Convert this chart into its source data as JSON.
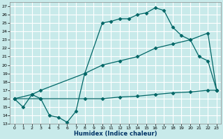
{
  "title": "",
  "xlabel": "Humidex (Indice chaleur)",
  "background_color": "#c8eaea",
  "grid_color": "#ffffff",
  "line_color": "#006666",
  "xlim": [
    -0.5,
    23.5
  ],
  "ylim": [
    13,
    27.5
  ],
  "xticks": [
    0,
    1,
    2,
    3,
    4,
    5,
    6,
    7,
    8,
    9,
    10,
    11,
    12,
    13,
    14,
    15,
    16,
    17,
    18,
    19,
    20,
    21,
    22,
    23
  ],
  "yticks": [
    13,
    14,
    15,
    16,
    17,
    18,
    19,
    20,
    21,
    22,
    23,
    24,
    25,
    26,
    27
  ],
  "line1_x": [
    0,
    1,
    2,
    3,
    4,
    5,
    6,
    7,
    8,
    10,
    11,
    12,
    13,
    14,
    15,
    16,
    17,
    18,
    19,
    20,
    21,
    22,
    23
  ],
  "line1_y": [
    16.0,
    15.0,
    16.5,
    16.0,
    14.0,
    13.8,
    13.2,
    14.5,
    19.0,
    25.0,
    25.2,
    25.5,
    25.5,
    26.0,
    26.2,
    26.8,
    26.5,
    24.5,
    23.5,
    23.0,
    21.0,
    20.5,
    17.0
  ],
  "line2_x": [
    0,
    2,
    3,
    8,
    10,
    12,
    14,
    16,
    18,
    20,
    22,
    23
  ],
  "line2_y": [
    16.0,
    16.5,
    17.0,
    19.0,
    20.0,
    20.5,
    21.0,
    22.0,
    22.5,
    23.0,
    23.8,
    17.0
  ],
  "line3_x": [
    0,
    3,
    8,
    10,
    12,
    14,
    16,
    18,
    20,
    22,
    23
  ],
  "line3_y": [
    16.0,
    16.0,
    16.0,
    16.0,
    16.2,
    16.3,
    16.5,
    16.7,
    16.8,
    17.0,
    17.0
  ]
}
